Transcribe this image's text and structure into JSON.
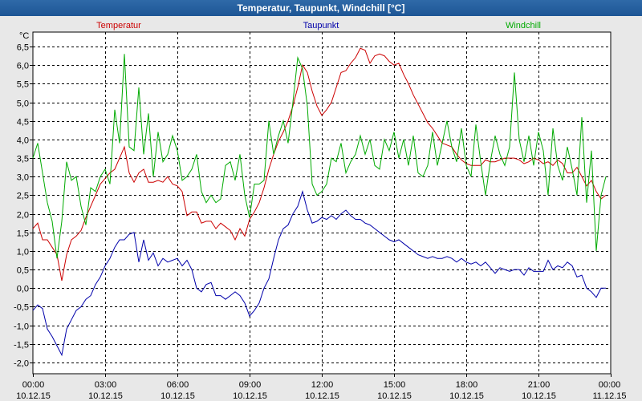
{
  "window": {
    "title": "Temperatur, Taupunkt, Windchill [°C]"
  },
  "chart_data": {
    "type": "line",
    "title": "Temperatur, Taupunkt, Windchill [°C]",
    "ylabel": "°C",
    "ylim": [
      -2.0,
      6.5
    ],
    "xlim": [
      0,
      24
    ],
    "yticks": [
      {
        "value": 6.5,
        "label": "6,5"
      },
      {
        "value": 6.0,
        "label": "6,0"
      },
      {
        "value": 5.5,
        "label": "5,5"
      },
      {
        "value": 5.0,
        "label": "5,0"
      },
      {
        "value": 4.5,
        "label": "4,5"
      },
      {
        "value": 4.0,
        "label": "4,0"
      },
      {
        "value": 3.5,
        "label": "3,5"
      },
      {
        "value": 3.0,
        "label": "3,0"
      },
      {
        "value": 2.5,
        "label": "2,5"
      },
      {
        "value": 2.0,
        "label": "2,0"
      },
      {
        "value": 1.5,
        "label": "1,5"
      },
      {
        "value": 1.0,
        "label": "1,0"
      },
      {
        "value": 0.5,
        "label": "0,5"
      },
      {
        "value": 0.0,
        "label": "0,0"
      },
      {
        "value": -0.5,
        "label": "-0,5"
      },
      {
        "value": -1.0,
        "label": "-1,0"
      },
      {
        "value": -1.5,
        "label": "-1,5"
      },
      {
        "value": -2.0,
        "label": "-2,0"
      }
    ],
    "xticks": [
      {
        "value": 0,
        "time": "00:00",
        "date": "10.12.15"
      },
      {
        "value": 3,
        "time": "03:00",
        "date": "10.12.15"
      },
      {
        "value": 6,
        "time": "06:00",
        "date": "10.12.15"
      },
      {
        "value": 9,
        "time": "09:00",
        "date": "10.12.15"
      },
      {
        "value": 12,
        "time": "12:00",
        "date": "10.12.15"
      },
      {
        "value": 15,
        "time": "15:00",
        "date": "10.12.15"
      },
      {
        "value": 18,
        "time": "18:00",
        "date": "10.12.15"
      },
      {
        "value": 21,
        "time": "21:00",
        "date": "10.12.15"
      },
      {
        "value": 24,
        "time": "00:00",
        "date": "11.12.15"
      }
    ],
    "legend": [
      "Temperatur",
      "Taupunkt",
      "Windchill"
    ],
    "grid": true,
    "series": [
      {
        "name": "Temperatur",
        "color": "#cc0000",
        "x": [
          0,
          0.2,
          0.4,
          0.6,
          0.8,
          1.0,
          1.2,
          1.4,
          1.6,
          1.8,
          2.0,
          2.2,
          2.4,
          2.6,
          2.8,
          3.0,
          3.2,
          3.4,
          3.6,
          3.8,
          4.0,
          4.2,
          4.4,
          4.6,
          4.8,
          5.0,
          5.2,
          5.4,
          5.6,
          5.8,
          6.0,
          6.2,
          6.4,
          6.6,
          6.8,
          7.0,
          7.2,
          7.4,
          7.6,
          7.8,
          8.0,
          8.2,
          8.4,
          8.6,
          8.8,
          9.0,
          9.2,
          9.4,
          9.6,
          9.8,
          10.0,
          10.2,
          10.4,
          10.6,
          10.8,
          11.0,
          11.2,
          11.4,
          11.6,
          11.8,
          12.0,
          12.2,
          12.4,
          12.6,
          12.8,
          13.0,
          13.2,
          13.4,
          13.6,
          13.8,
          14.0,
          14.2,
          14.4,
          14.6,
          14.8,
          15.0,
          15.2,
          15.4,
          15.6,
          15.8,
          16.0,
          16.2,
          16.4,
          16.6,
          16.8,
          17.0,
          17.2,
          17.4,
          17.6,
          17.8,
          18.0,
          18.2,
          18.4,
          18.6,
          18.8,
          19.0,
          19.2,
          19.4,
          19.6,
          19.8,
          20.0,
          20.2,
          20.4,
          20.6,
          20.8,
          21.0,
          21.2,
          21.4,
          21.6,
          21.8,
          22.0,
          22.2,
          22.4,
          22.6,
          22.8,
          23.0,
          23.2,
          23.4,
          23.6,
          23.8
        ],
        "values": [
          1.6,
          1.75,
          1.3,
          1.3,
          1.1,
          0.9,
          0.2,
          0.9,
          1.3,
          1.4,
          1.55,
          1.9,
          2.2,
          2.5,
          2.8,
          2.95,
          3.1,
          3.2,
          3.5,
          3.8,
          3.1,
          2.85,
          3.1,
          3.2,
          2.85,
          2.85,
          2.9,
          2.85,
          3.0,
          2.8,
          2.75,
          2.6,
          1.95,
          2.05,
          2.05,
          1.75,
          1.8,
          1.8,
          1.6,
          1.75,
          1.65,
          1.55,
          1.3,
          1.6,
          1.4,
          1.85,
          2.05,
          2.3,
          2.7,
          3.2,
          3.6,
          3.95,
          4.2,
          4.5,
          4.9,
          5.4,
          6.0,
          5.8,
          5.3,
          4.9,
          4.65,
          4.8,
          5.0,
          5.4,
          5.8,
          5.85,
          6.05,
          6.2,
          6.45,
          6.4,
          6.05,
          6.25,
          6.3,
          6.25,
          6.1,
          6.0,
          6.05,
          5.75,
          5.5,
          5.2,
          4.95,
          4.7,
          4.45,
          4.3,
          4.1,
          3.9,
          3.85,
          3.8,
          3.6,
          3.45,
          3.35,
          3.3,
          3.3,
          3.3,
          3.45,
          3.4,
          3.4,
          3.45,
          3.5,
          3.5,
          3.5,
          3.45,
          3.35,
          3.4,
          3.5,
          3.45,
          3.35,
          3.4,
          3.3,
          3.45,
          3.35,
          3.1,
          3.1,
          3.25,
          3.0,
          2.75,
          2.9,
          2.6,
          2.4,
          2.5
        ]
      },
      {
        "name": "Taupunkt",
        "color": "#0000aa",
        "x": [
          0,
          0.2,
          0.4,
          0.6,
          0.8,
          1.0,
          1.2,
          1.4,
          1.6,
          1.8,
          2.0,
          2.2,
          2.4,
          2.6,
          2.8,
          3.0,
          3.2,
          3.4,
          3.6,
          3.8,
          4.0,
          4.2,
          4.4,
          4.6,
          4.8,
          5.0,
          5.2,
          5.4,
          5.6,
          5.8,
          6.0,
          6.2,
          6.4,
          6.6,
          6.8,
          7.0,
          7.2,
          7.4,
          7.6,
          7.8,
          8.0,
          8.2,
          8.4,
          8.6,
          8.8,
          9.0,
          9.2,
          9.4,
          9.6,
          9.8,
          10.0,
          10.2,
          10.4,
          10.6,
          10.8,
          11.0,
          11.2,
          11.4,
          11.6,
          11.8,
          12.0,
          12.2,
          12.4,
          12.6,
          12.8,
          13.0,
          13.2,
          13.4,
          13.6,
          13.8,
          14.0,
          14.2,
          14.4,
          14.6,
          14.8,
          15.0,
          15.2,
          15.4,
          15.6,
          15.8,
          16.0,
          16.2,
          16.4,
          16.6,
          16.8,
          17.0,
          17.2,
          17.4,
          17.6,
          17.8,
          18.0,
          18.2,
          18.4,
          18.6,
          18.8,
          19.0,
          19.2,
          19.4,
          19.6,
          19.8,
          20.0,
          20.2,
          20.4,
          20.6,
          20.8,
          21.0,
          21.2,
          21.4,
          21.6,
          21.8,
          22.0,
          22.2,
          22.4,
          22.6,
          22.8,
          23.0,
          23.2,
          23.4,
          23.6,
          23.8
        ],
        "values": [
          -0.6,
          -0.45,
          -0.55,
          -1.1,
          -1.3,
          -1.55,
          -1.8,
          -1.1,
          -0.85,
          -0.6,
          -0.5,
          -0.3,
          -0.2,
          0.1,
          0.3,
          0.6,
          0.8,
          1.1,
          1.3,
          1.3,
          1.45,
          1.5,
          0.7,
          1.3,
          0.75,
          0.95,
          0.6,
          0.8,
          0.7,
          0.75,
          0.8,
          0.6,
          0.75,
          0.5,
          0.0,
          -0.1,
          0.1,
          0.15,
          -0.2,
          -0.2,
          -0.3,
          -0.2,
          -0.1,
          -0.2,
          -0.4,
          -0.75,
          -0.6,
          -0.4,
          0.0,
          0.25,
          0.8,
          1.3,
          1.6,
          1.7,
          2.0,
          2.2,
          2.6,
          2.1,
          1.75,
          1.8,
          1.9,
          1.85,
          1.95,
          1.85,
          2.0,
          2.1,
          1.95,
          1.85,
          1.85,
          1.75,
          1.7,
          1.6,
          1.5,
          1.4,
          1.3,
          1.25,
          1.3,
          1.2,
          1.1,
          1.0,
          0.9,
          0.85,
          0.8,
          0.85,
          0.8,
          0.8,
          0.85,
          0.8,
          0.7,
          0.8,
          0.7,
          0.65,
          0.7,
          0.6,
          0.7,
          0.55,
          0.4,
          0.55,
          0.5,
          0.45,
          0.5,
          0.5,
          0.35,
          0.55,
          0.45,
          0.45,
          0.45,
          0.75,
          0.5,
          0.6,
          0.55,
          0.7,
          0.6,
          0.3,
          0.35,
          0.0,
          -0.1,
          -0.25,
          0.0,
          0.0
        ]
      },
      {
        "name": "Windchill",
        "color": "#00aa00",
        "x": [
          0,
          0.2,
          0.4,
          0.6,
          0.8,
          1.0,
          1.2,
          1.4,
          1.6,
          1.8,
          2.0,
          2.2,
          2.4,
          2.6,
          2.8,
          3.0,
          3.2,
          3.4,
          3.6,
          3.8,
          4.0,
          4.2,
          4.4,
          4.6,
          4.8,
          5.0,
          5.2,
          5.4,
          5.6,
          5.8,
          6.0,
          6.2,
          6.4,
          6.6,
          6.8,
          7.0,
          7.2,
          7.4,
          7.6,
          7.8,
          8.0,
          8.2,
          8.4,
          8.6,
          8.8,
          9.0,
          9.2,
          9.4,
          9.6,
          9.8,
          10.0,
          10.2,
          10.4,
          10.6,
          10.8,
          11.0,
          11.2,
          11.4,
          11.6,
          11.8,
          12.0,
          12.2,
          12.4,
          12.6,
          12.8,
          13.0,
          13.2,
          13.4,
          13.6,
          13.8,
          14.0,
          14.2,
          14.4,
          14.6,
          14.8,
          15.0,
          15.2,
          15.4,
          15.6,
          15.8,
          16.0,
          16.2,
          16.4,
          16.6,
          16.8,
          17.0,
          17.2,
          17.4,
          17.6,
          17.8,
          18.0,
          18.2,
          18.4,
          18.6,
          18.8,
          19.0,
          19.2,
          19.4,
          19.6,
          19.8,
          20.0,
          20.2,
          20.4,
          20.6,
          20.8,
          21.0,
          21.2,
          21.4,
          21.6,
          21.8,
          22.0,
          22.2,
          22.4,
          22.6,
          22.8,
          23.0,
          23.2,
          23.4,
          23.6,
          23.8
        ],
        "values": [
          3.5,
          3.9,
          3.1,
          2.3,
          1.8,
          0.8,
          1.8,
          3.4,
          2.9,
          3.0,
          2.2,
          1.7,
          2.7,
          2.6,
          3.0,
          3.2,
          2.8,
          4.8,
          3.9,
          6.3,
          3.8,
          3.7,
          5.4,
          3.6,
          4.7,
          3.0,
          4.2,
          3.4,
          3.6,
          4.1,
          3.7,
          2.9,
          3.0,
          3.2,
          3.6,
          2.6,
          2.3,
          2.5,
          2.3,
          2.4,
          3.3,
          3.4,
          2.9,
          3.6,
          2.5,
          1.9,
          2.8,
          2.8,
          2.9,
          4.5,
          3.6,
          4.1,
          4.5,
          3.9,
          5.0,
          6.2,
          5.9,
          4.9,
          2.8,
          2.5,
          2.6,
          2.8,
          3.5,
          3.4,
          3.9,
          3.1,
          3.4,
          3.6,
          4.1,
          3.6,
          4.0,
          3.3,
          3.2,
          4.0,
          3.7,
          4.2,
          3.5,
          4.0,
          3.3,
          4.1,
          3.1,
          3.0,
          3.3,
          4.2,
          3.3,
          3.9,
          4.5,
          3.8,
          3.4,
          4.3,
          3.3,
          3.0,
          4.4,
          3.4,
          2.5,
          3.4,
          4.1,
          3.6,
          3.3,
          3.8,
          5.8,
          4.0,
          3.4,
          4.1,
          3.3,
          4.2,
          3.7,
          2.5,
          4.3,
          3.3,
          2.9,
          3.8,
          3.2,
          2.5,
          4.6,
          2.3,
          3.7,
          1.0,
          2.5,
          3.0
        ]
      }
    ]
  }
}
